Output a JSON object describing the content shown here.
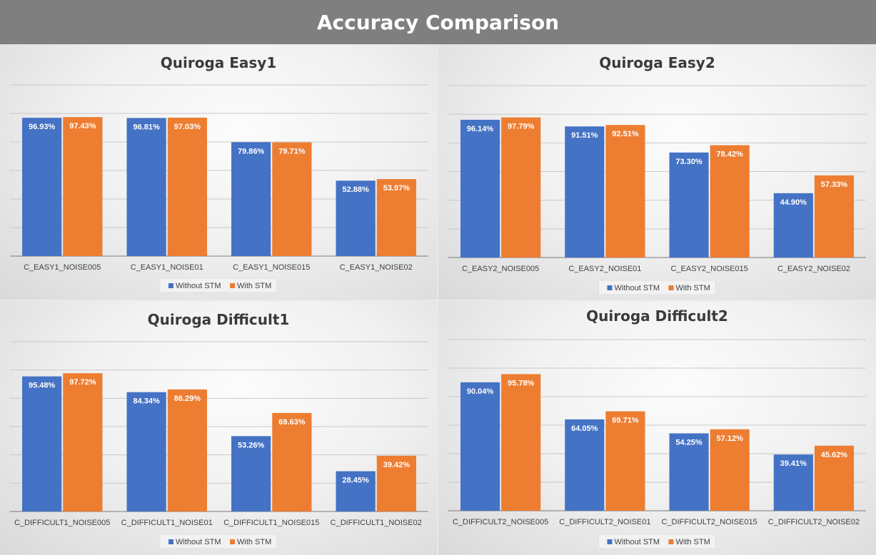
{
  "header": {
    "title": "Accuracy Comparison"
  },
  "colors": {
    "without": "#4472c4",
    "with": "#ed7d31",
    "grid": "#c8c8c8",
    "axis": "#7a7a7a"
  },
  "chart_data": [
    {
      "type": "bar",
      "title": "Quiroga Easy1",
      "categories": [
        "C_EASY1_NOISE005",
        "C_EASY1_NOISE01",
        "C_EASY1_NOISE015",
        "C_EASY1_NOISE02"
      ],
      "series": [
        {
          "name": "Without STM",
          "values": [
            96.93,
            96.81,
            79.86,
            52.88
          ],
          "labels": [
            "96.93%",
            "96.81%",
            "79.86%",
            "52.88%"
          ]
        },
        {
          "name": "With STM",
          "values": [
            97.43,
            97.03,
            79.71,
            53.97
          ],
          "labels": [
            "97.43%",
            "97.03%",
            "79.71%",
            "53.97%"
          ]
        }
      ],
      "ylim": [
        0,
        120
      ],
      "grid": true,
      "legend": "bottom"
    },
    {
      "type": "bar",
      "title": "Quiroga Easy2",
      "categories": [
        "C_EASY2_NOISE005",
        "C_EASY2_NOISE01",
        "C_EASY2_NOISE015",
        "C_EASY2_NOISE02"
      ],
      "series": [
        {
          "name": "Without STM",
          "values": [
            96.14,
            91.51,
            73.3,
            44.9
          ],
          "labels": [
            "96.14%",
            "91.51%",
            "73.30%",
            "44.90%"
          ]
        },
        {
          "name": "With STM",
          "values": [
            97.79,
            92.51,
            78.42,
            57.33
          ],
          "labels": [
            "97.79%",
            "92.51%",
            "78.42%",
            "57.33%"
          ]
        }
      ],
      "ylim": [
        0,
        120
      ],
      "grid": true,
      "legend": "bottom"
    },
    {
      "type": "bar",
      "title": "Quiroga Difficult1",
      "categories": [
        "C_DIFFICULT1_NOISE005",
        "C_DIFFICULT1_NOISE01",
        "C_DIFFICULT1_NOISE015",
        "C_DIFFICULT1_NOISE02"
      ],
      "series": [
        {
          "name": "Without STM",
          "values": [
            95.48,
            84.34,
            53.26,
            28.45
          ],
          "labels": [
            "95.48%",
            "84.34%",
            "53.26%",
            "28.45%"
          ]
        },
        {
          "name": "With STM",
          "values": [
            97.72,
            86.29,
            69.63,
            39.42
          ],
          "labels": [
            "97.72%",
            "86.29%",
            "69.63%",
            "39.42%"
          ]
        }
      ],
      "ylim": [
        0,
        120
      ],
      "grid": true,
      "legend": "bottom"
    },
    {
      "type": "bar",
      "title": "Quiroga Difficult2",
      "categories": [
        "C_DIFFICULT2_NOISE005",
        "C_DIFFICULT2_NOISE01",
        "C_DIFFICULT2_NOISE015",
        "C_DIFFICULT2_NOISE02"
      ],
      "series": [
        {
          "name": "Without STM",
          "values": [
            90.04,
            64.05,
            54.25,
            39.41
          ],
          "labels": [
            "90.04%",
            "64.05%",
            "54.25%",
            "39.41%"
          ]
        },
        {
          "name": "With STM",
          "values": [
            95.78,
            69.71,
            57.12,
            45.62
          ],
          "labels": [
            "95.78%",
            "69.71%",
            "57.12%",
            "45.62%"
          ]
        }
      ],
      "ylim": [
        0,
        120
      ],
      "grid": true,
      "legend": "bottom"
    }
  ]
}
